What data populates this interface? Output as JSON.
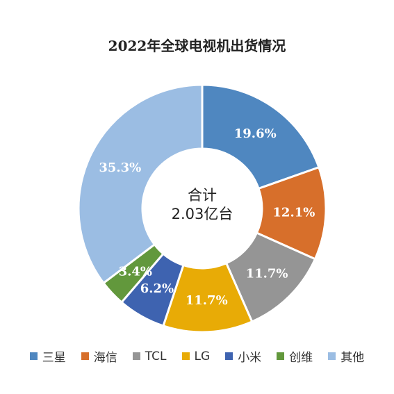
{
  "chart_data": {
    "type": "pie",
    "title": "2022年全球电视机出货情况",
    "center_label": [
      "合计",
      "2.03亿台"
    ],
    "slices": [
      {
        "name": "三星",
        "value": 19.6,
        "label": "19.6%",
        "color": "#4f87c0"
      },
      {
        "name": "海信",
        "value": 12.1,
        "label": "12.1%",
        "color": "#d76f2b"
      },
      {
        "name": "TCL",
        "value": 11.7,
        "label": "11.7%",
        "color": "#959595"
      },
      {
        "name": "LG",
        "value": 11.7,
        "label": "11.7%",
        "color": "#e8ab06"
      },
      {
        "name": "小米",
        "value": 6.2,
        "label": "6.2%",
        "color": "#3e63b0"
      },
      {
        "name": "创维",
        "value": 3.4,
        "label": "3.4%",
        "color": "#62983c"
      },
      {
        "name": "其他",
        "value": 35.3,
        "label": "35.3%",
        "color": "#9bbde3"
      }
    ],
    "legend_position": "bottom"
  }
}
